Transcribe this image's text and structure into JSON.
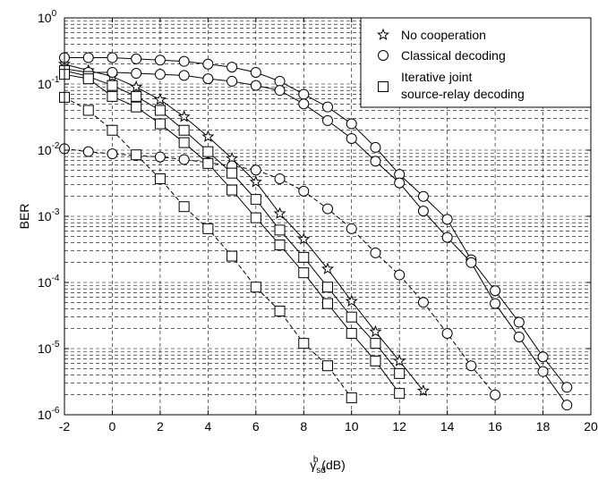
{
  "chart_data": {
    "type": "line",
    "title": "",
    "xlabel": {
      "main": "γ",
      "sup": "b",
      "sub": "sd",
      "unit": " (dB)"
    },
    "ylabel": "BER",
    "xlim": [
      -2,
      20
    ],
    "ylim": [
      1e-06,
      1
    ],
    "y_scale": "log",
    "grid": true,
    "grid_style": "dashed",
    "x_ticks": [
      "-2",
      "0",
      "2",
      "4",
      "6",
      "8",
      "10",
      "12",
      "14",
      "16",
      "18",
      "20"
    ],
    "y_ticks": [
      {
        "base": "10",
        "exp": "0"
      },
      {
        "base": "10",
        "exp": "-1"
      },
      {
        "base": "10",
        "exp": "-2"
      },
      {
        "base": "10",
        "exp": "-3"
      },
      {
        "base": "10",
        "exp": "-4"
      },
      {
        "base": "10",
        "exp": "-5"
      },
      {
        "base": "10",
        "exp": "-6"
      }
    ],
    "legend": {
      "position": "top-right",
      "entries": [
        {
          "marker": "star",
          "lines": [
            "No cooperation"
          ]
        },
        {
          "marker": "circle",
          "lines": [
            "Classical decoding"
          ]
        },
        {
          "marker": "square",
          "lines": [
            "Iterative joint",
            "source-relay decoding"
          ]
        }
      ]
    },
    "series": [
      {
        "marker": "star",
        "dash": "solid",
        "x": [
          -2,
          -1,
          0,
          1,
          2,
          3,
          4,
          5,
          6,
          7,
          8,
          9,
          10,
          11,
          12,
          13
        ],
        "y": [
          0.2,
          0.16,
          0.13,
          0.09,
          0.058,
          0.032,
          0.016,
          0.0075,
          0.0033,
          0.0011,
          0.00045,
          0.00016,
          5.2e-05,
          1.8e-05,
          6.5e-06,
          2.3e-06
        ]
      },
      {
        "marker": "circle",
        "dash": "solid",
        "x": [
          -2,
          -1,
          0,
          1,
          2,
          3,
          4,
          5,
          6,
          7,
          8,
          9,
          10,
          11,
          12,
          13,
          14,
          15,
          16,
          17,
          18,
          19
        ],
        "y": [
          0.25,
          0.25,
          0.25,
          0.24,
          0.23,
          0.22,
          0.2,
          0.18,
          0.15,
          0.11,
          0.07,
          0.045,
          0.025,
          0.011,
          0.0043,
          0.002,
          0.0009,
          0.00022,
          7.5e-05,
          2.5e-05,
          7.5e-06,
          2.6e-06
        ]
      },
      {
        "marker": "circle",
        "dash": "solid",
        "x": [
          -2,
          -1,
          0,
          1,
          2,
          3,
          4,
          5,
          6,
          7,
          8,
          9,
          10,
          11,
          12,
          13,
          14,
          15,
          16,
          17,
          18,
          19
        ],
        "y": [
          0.17,
          0.15,
          0.15,
          0.145,
          0.14,
          0.135,
          0.12,
          0.11,
          0.095,
          0.08,
          0.05,
          0.028,
          0.015,
          0.0068,
          0.0032,
          0.0012,
          0.00048,
          0.0002,
          4.8e-05,
          1.5e-05,
          4.5e-06,
          1.4e-06
        ]
      },
      {
        "marker": "circle",
        "dash": "dashed",
        "x": [
          -2,
          -1,
          0,
          1,
          2,
          3,
          4,
          5,
          6,
          7,
          8,
          9,
          10,
          11,
          12,
          13,
          14,
          15,
          16
        ],
        "y": [
          0.0105,
          0.0095,
          0.0088,
          0.0083,
          0.0079,
          0.0072,
          0.0065,
          0.0058,
          0.005,
          0.0037,
          0.0024,
          0.0013,
          0.00065,
          0.00028,
          0.00013,
          5e-05,
          1.7e-05,
          5.5e-06,
          2e-06
        ]
      },
      {
        "marker": "square",
        "dash": "solid",
        "x": [
          -2,
          -1,
          0,
          1,
          2,
          3,
          4,
          5,
          6,
          7,
          8,
          9,
          10,
          11,
          12
        ],
        "y": [
          0.16,
          0.13,
          0.095,
          0.065,
          0.04,
          0.02,
          0.0095,
          0.0045,
          0.0018,
          0.00062,
          0.00024,
          8.5e-05,
          3e-05,
          1.2e-05,
          4.2e-06
        ]
      },
      {
        "marker": "square",
        "dash": "solid",
        "x": [
          -2,
          -1,
          0,
          1,
          2,
          3,
          4,
          5,
          6,
          7,
          8,
          9,
          10,
          11,
          12
        ],
        "y": [
          0.14,
          0.12,
          0.065,
          0.045,
          0.025,
          0.013,
          0.0063,
          0.0025,
          0.00095,
          0.00037,
          0.00014,
          4.8e-05,
          1.7e-05,
          6.5e-06,
          2.1e-06
        ]
      },
      {
        "marker": "square",
        "dash": "dashed",
        "x": [
          -2,
          -1,
          0,
          1,
          2,
          3,
          4,
          5,
          6,
          7,
          8,
          9,
          10
        ],
        "y": [
          0.063,
          0.04,
          0.02,
          0.0085,
          0.0037,
          0.0014,
          0.00065,
          0.00025,
          8.5e-05,
          3.7e-05,
          1.2e-05,
          5.5e-06,
          1.8e-06
        ]
      }
    ]
  }
}
